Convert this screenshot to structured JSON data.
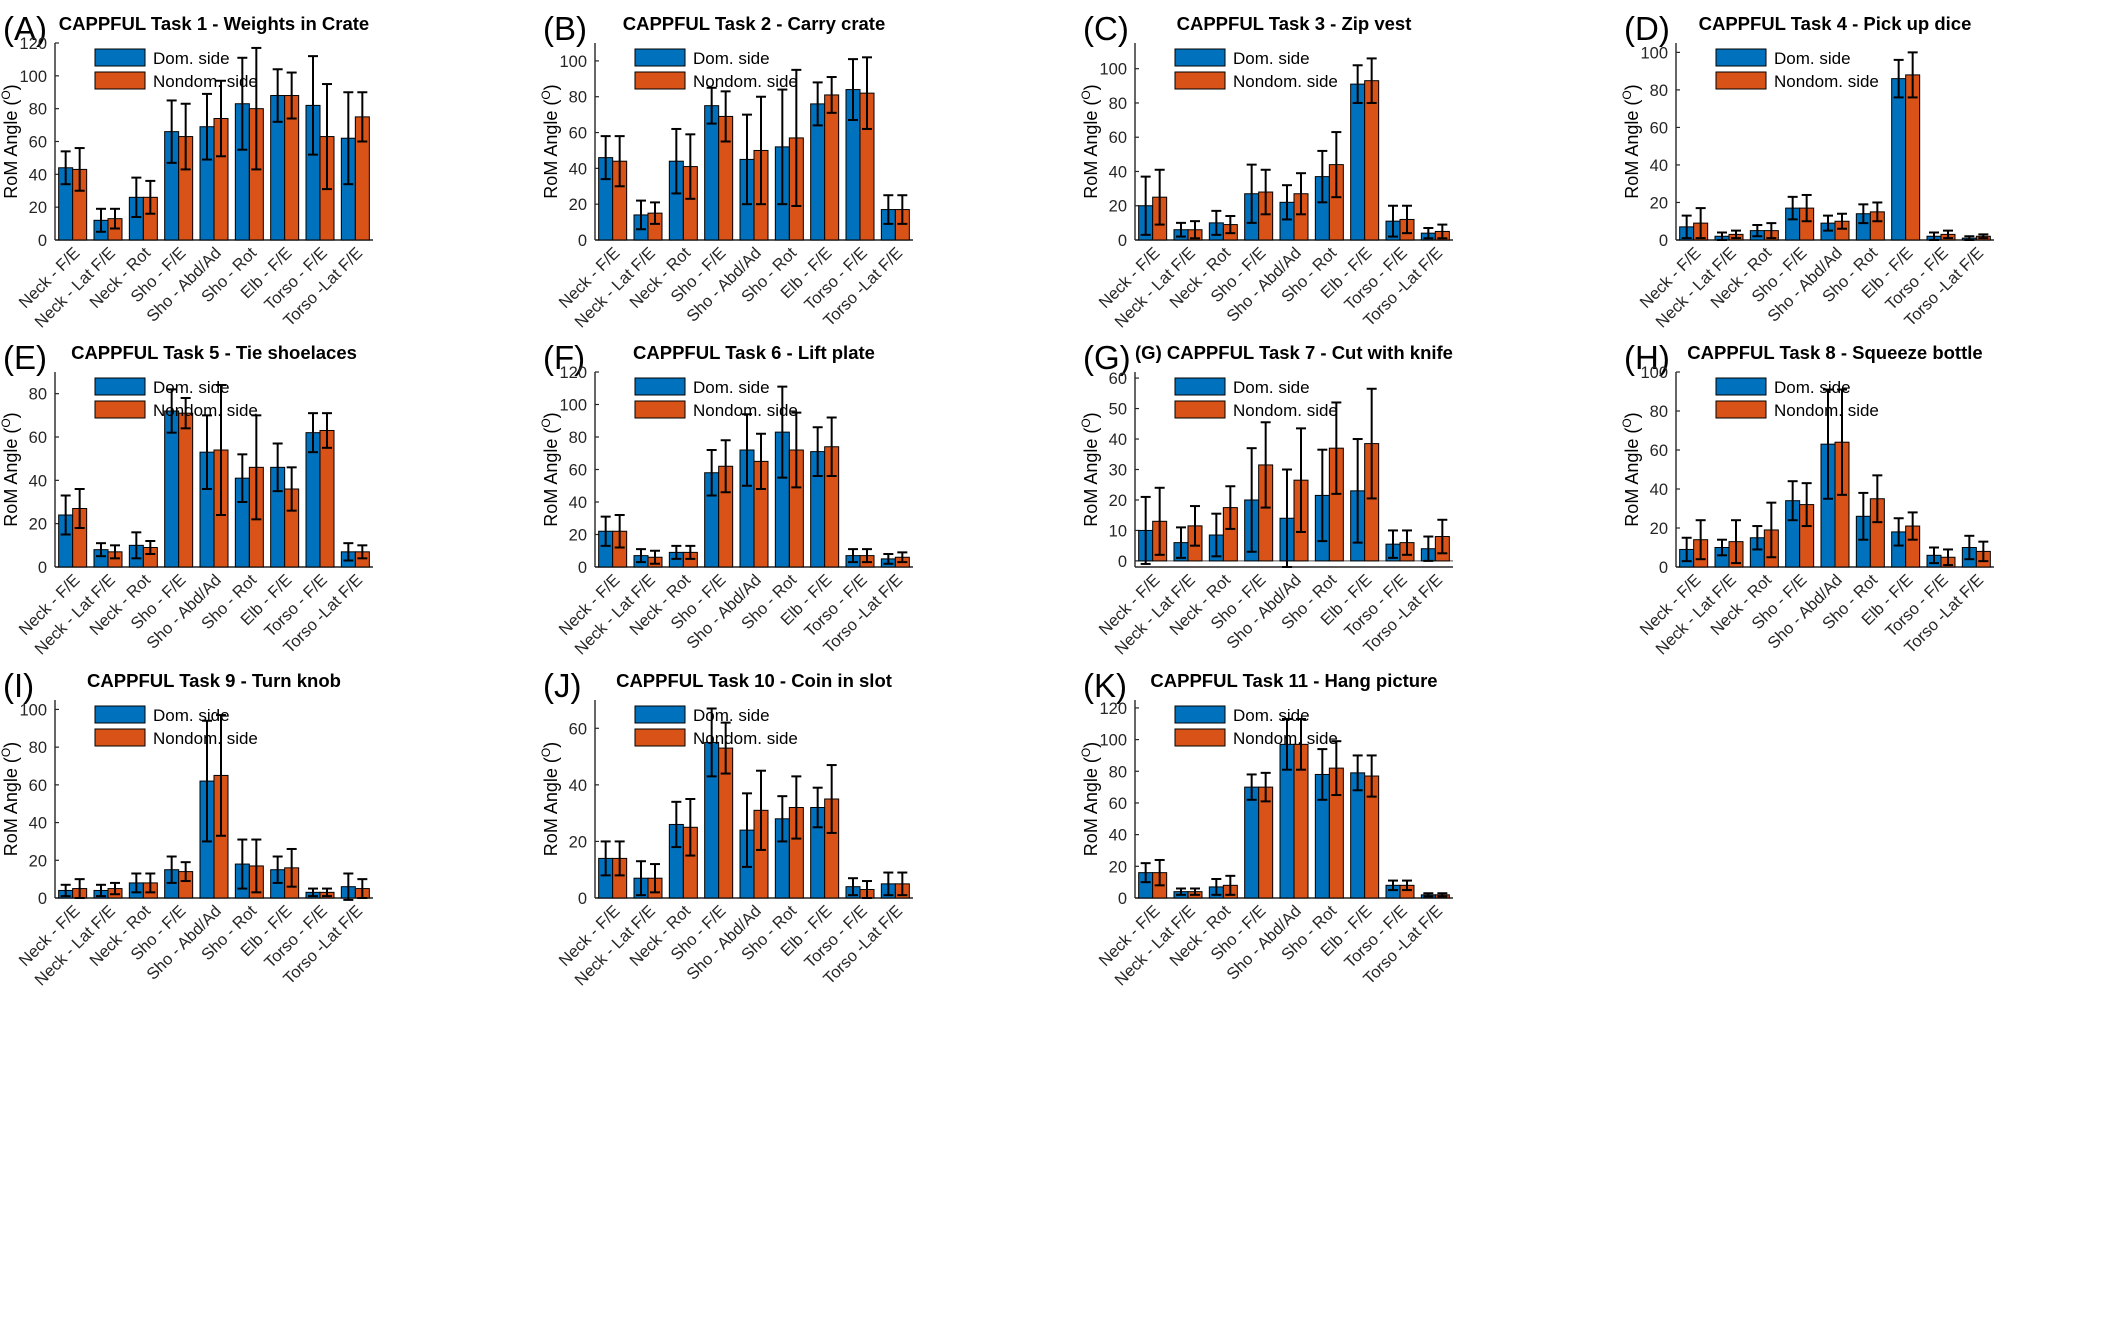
{
  "figure": {
    "legend": {
      "dom": "Dom. side",
      "nondom": "Nondom. side"
    },
    "ylabel": "RoM Angle (",
    "ylabel_sup": "O",
    "ylabel_close": ")",
    "colors": {
      "dom": "#0072BD",
      "nondom": "#D95319",
      "axis": "#262626",
      "errorbar": "#000000"
    },
    "categories": [
      "Neck - F/E",
      "Neck - Lat F/E",
      "Neck - Rot",
      "Sho - F/E",
      "Sho - Abd/Ad",
      "Sho - Rot",
      "Elb - F/E",
      "Torso - F/E",
      "Torso -Lat F/E"
    ]
  },
  "chart_data": [
    {
      "type": "bar",
      "panel": "(A)",
      "title": "CAPPFUL Task 1  -  Weights in Crate",
      "ylim": [
        0,
        120
      ],
      "yticks": [
        0,
        20,
        40,
        60,
        80,
        100,
        120
      ],
      "series": [
        {
          "name": "Dom. side",
          "values": [
            44,
            12,
            26,
            66,
            69,
            83,
            88,
            82,
            62
          ],
          "errors": [
            10,
            7,
            12,
            19,
            20,
            28,
            16,
            30,
            28
          ]
        },
        {
          "name": "Nondom. side",
          "values": [
            43,
            13,
            26,
            63,
            74,
            80,
            88,
            63,
            75
          ],
          "errors": [
            13,
            6,
            10,
            20,
            23,
            37,
            14,
            32,
            15
          ]
        }
      ]
    },
    {
      "type": "bar",
      "panel": "(B)",
      "title": "CAPPFUL Task 2  -  Carry crate",
      "ylim": [
        0,
        110
      ],
      "yticks": [
        0,
        20,
        40,
        60,
        80,
        100
      ],
      "series": [
        {
          "name": "Dom. side",
          "values": [
            46,
            14,
            44,
            75,
            45,
            52,
            76,
            84,
            17
          ],
          "errors": [
            12,
            8,
            18,
            10,
            25,
            32,
            12,
            17,
            8
          ]
        },
        {
          "name": "Nondom. side",
          "values": [
            44,
            15,
            41,
            69,
            50,
            57,
            81,
            82,
            17
          ],
          "errors": [
            14,
            6,
            18,
            14,
            30,
            38,
            10,
            20,
            8
          ]
        }
      ]
    },
    {
      "type": "bar",
      "panel": "(C)",
      "title": "CAPPFUL Task 3  -  Zip vest",
      "ylim": [
        0,
        115
      ],
      "yticks": [
        0,
        20,
        40,
        60,
        80,
        100
      ],
      "series": [
        {
          "name": "Dom. side",
          "values": [
            20,
            6,
            10,
            27,
            22,
            37,
            91,
            11,
            4
          ],
          "errors": [
            17,
            4,
            7,
            17,
            10,
            15,
            11,
            9,
            3
          ]
        },
        {
          "name": "Nondom. side",
          "values": [
            25,
            6,
            9,
            28,
            27,
            44,
            93,
            12,
            5
          ],
          "errors": [
            16,
            5,
            5,
            13,
            12,
            19,
            13,
            8,
            4
          ]
        }
      ]
    },
    {
      "type": "bar",
      "panel": "(D)",
      "title": "CAPPFUL Task 4  -  Pick up dice",
      "ylim": [
        0,
        105
      ],
      "yticks": [
        0,
        20,
        40,
        60,
        80,
        100
      ],
      "series": [
        {
          "name": "Dom. side",
          "values": [
            7,
            2,
            5,
            17,
            9,
            14,
            86,
            2,
            1
          ],
          "errors": [
            6,
            2,
            3,
            6,
            4,
            5,
            10,
            2,
            1
          ]
        },
        {
          "name": "Nondom. side",
          "values": [
            9,
            3,
            5,
            17,
            10,
            15,
            88,
            3,
            2
          ],
          "errors": [
            8,
            2,
            4,
            7,
            4,
            5,
            12,
            2,
            1
          ]
        }
      ]
    },
    {
      "type": "bar",
      "panel": "(E)",
      "title": "CAPPFUL Task 5  -  Tie shoelaces",
      "ylim": [
        0,
        90
      ],
      "yticks": [
        0,
        20,
        40,
        60,
        80
      ],
      "series": [
        {
          "name": "Dom. side",
          "values": [
            24,
            8,
            10,
            72,
            53,
            41,
            46,
            62,
            7
          ],
          "errors": [
            9,
            3,
            6,
            10,
            17,
            11,
            11,
            9,
            4
          ]
        },
        {
          "name": "Nondom. side",
          "values": [
            27,
            7,
            9,
            71,
            54,
            46,
            36,
            63,
            7
          ],
          "errors": [
            9,
            3,
            3,
            7,
            30,
            24,
            10,
            8,
            3
          ]
        }
      ]
    },
    {
      "type": "bar",
      "panel": "(F)",
      "title": "CAPPFUL Task 6  -  Lift plate",
      "ylim": [
        0,
        120
      ],
      "yticks": [
        0,
        20,
        40,
        60,
        80,
        100,
        120
      ],
      "series": [
        {
          "name": "Dom. side",
          "values": [
            22,
            7,
            9,
            58,
            72,
            83,
            71,
            7,
            5
          ],
          "errors": [
            9,
            4,
            4,
            14,
            22,
            28,
            15,
            4,
            3
          ]
        },
        {
          "name": "Nondom. side",
          "values": [
            22,
            6,
            9,
            62,
            65,
            72,
            74,
            7,
            6
          ],
          "errors": [
            10,
            4,
            4,
            16,
            17,
            23,
            18,
            4,
            3
          ]
        }
      ]
    },
    {
      "type": "bar",
      "panel": "(G)",
      "title": "(G) CAPPFUL Task 7  -  Cut with knife",
      "ylim": [
        -2,
        62
      ],
      "yticks": [
        0,
        10,
        20,
        30,
        40,
        50,
        60
      ],
      "series": [
        {
          "name": "Dom. side",
          "values": [
            10,
            6,
            8.5,
            20,
            14,
            21.5,
            23,
            5.5,
            4
          ],
          "errors": [
            11,
            5,
            7,
            17,
            16,
            15,
            17,
            4.5,
            4
          ]
        },
        {
          "name": "Nondom. side",
          "values": [
            13,
            11.5,
            17.5,
            31.5,
            26.5,
            37,
            38.5,
            6,
            8
          ],
          "errors": [
            11,
            6.5,
            7,
            14,
            17,
            15,
            18,
            4,
            5.5
          ]
        }
      ]
    },
    {
      "type": "bar",
      "panel": "(H)",
      "title": "CAPPFUL Task 8  -  Squeeze bottle",
      "ylim": [
        0,
        100
      ],
      "yticks": [
        0,
        20,
        40,
        60,
        80,
        100
      ],
      "series": [
        {
          "name": "Dom. side",
          "values": [
            9,
            10,
            15,
            34,
            63,
            26,
            18,
            6,
            10
          ],
          "errors": [
            6,
            4,
            6,
            10,
            28,
            12,
            7,
            4,
            6
          ]
        },
        {
          "name": "Nondom. side",
          "values": [
            14,
            13,
            19,
            32,
            64,
            35,
            21,
            5,
            8
          ],
          "errors": [
            10,
            11,
            14,
            11,
            27,
            12,
            7,
            4,
            5
          ]
        }
      ]
    },
    {
      "type": "bar",
      "panel": "(I)",
      "title": "CAPPFUL Task 9  -  Turn knob",
      "ylim": [
        0,
        105
      ],
      "yticks": [
        0,
        20,
        40,
        60,
        80,
        100
      ],
      "series": [
        {
          "name": "Dom. side",
          "values": [
            4,
            4,
            8,
            15,
            62,
            18,
            15,
            3,
            6
          ],
          "errors": [
            3,
            3,
            5,
            7,
            32,
            13,
            7,
            2,
            7
          ]
        },
        {
          "name": "Nondom. side",
          "values": [
            5,
            5,
            8,
            14,
            65,
            17,
            16,
            3,
            5
          ],
          "errors": [
            5,
            3,
            5,
            5,
            32,
            14,
            10,
            2,
            5
          ]
        }
      ]
    },
    {
      "type": "bar",
      "panel": "(J)",
      "title": "CAPPFUL Task 10  -  Coin in slot",
      "ylim": [
        0,
        70
      ],
      "yticks": [
        0,
        20,
        40,
        60
      ],
      "series": [
        {
          "name": "Dom. side",
          "values": [
            14,
            7,
            26,
            55,
            24,
            28,
            32,
            4,
            5
          ],
          "errors": [
            6,
            6,
            8,
            12,
            13,
            8,
            7,
            3,
            4
          ]
        },
        {
          "name": "Nondom. side",
          "values": [
            14,
            7,
            25,
            53,
            31,
            32,
            35,
            3,
            5
          ],
          "errors": [
            6,
            5,
            10,
            9,
            14,
            11,
            12,
            3,
            4
          ]
        }
      ]
    },
    {
      "type": "bar",
      "panel": "(K)",
      "title": "CAPPFUL Task 11  -  Hang picture",
      "ylim": [
        0,
        125
      ],
      "yticks": [
        0,
        20,
        40,
        60,
        80,
        100,
        120
      ],
      "series": [
        {
          "name": "Dom. side",
          "values": [
            16,
            4,
            7,
            70,
            97,
            78,
            79,
            8,
            2
          ],
          "errors": [
            6,
            2,
            5,
            8,
            16,
            16,
            11,
            3,
            1
          ]
        },
        {
          "name": "Nondom. side",
          "values": [
            16,
            4,
            8,
            70,
            97,
            82,
            77,
            8,
            2
          ],
          "errors": [
            8,
            2,
            6,
            9,
            16,
            17,
            13,
            3,
            1
          ]
        }
      ]
    }
  ]
}
